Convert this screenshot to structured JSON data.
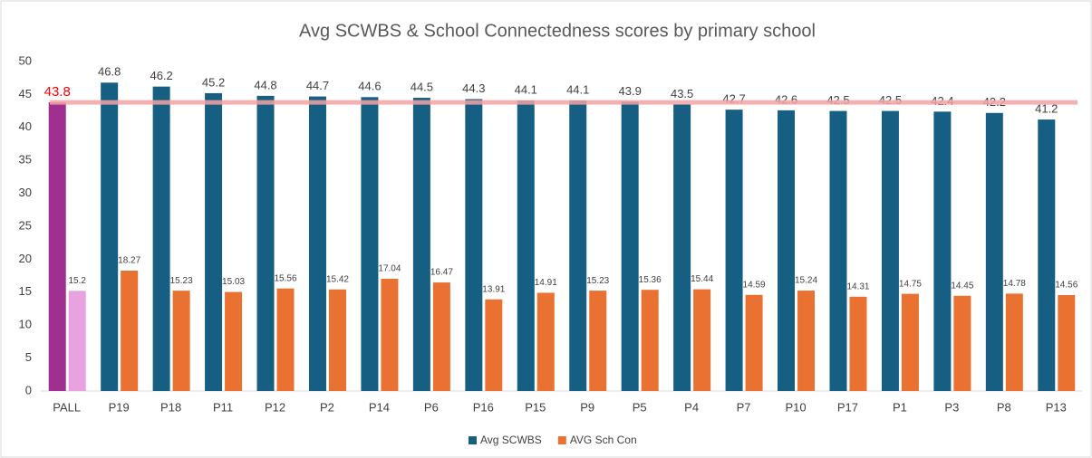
{
  "chart_data": {
    "type": "bar",
    "title": "Avg SCWBS & School Connectedness scores by primary school",
    "categories": [
      "PALL",
      "P19",
      "P18",
      "P11",
      "P12",
      "P2",
      "P14",
      "P6",
      "P16",
      "P15",
      "P9",
      "P5",
      "P4",
      "P7",
      "P10",
      "P17",
      "P1",
      "P3",
      "P8",
      "P13"
    ],
    "series": [
      {
        "name": "Avg SCWBS",
        "color": "#175e83",
        "colors": [
          "#a0308f",
          "#175e83",
          "#175e83",
          "#175e83",
          "#175e83",
          "#175e83",
          "#175e83",
          "#175e83",
          "#175e83",
          "#175e83",
          "#175e83",
          "#175e83",
          "#175e83",
          "#175e83",
          "#175e83",
          "#175e83",
          "#175e83",
          "#175e83",
          "#175e83",
          "#175e83"
        ],
        "label_colors": [
          "#ff0000",
          "#404040",
          "#404040",
          "#404040",
          "#404040",
          "#404040",
          "#404040",
          "#404040",
          "#404040",
          "#404040",
          "#404040",
          "#404040",
          "#404040",
          "#404040",
          "#404040",
          "#404040",
          "#404040",
          "#404040",
          "#404040",
          "#404040"
        ],
        "values": [
          43.8,
          46.8,
          46.2,
          45.2,
          44.8,
          44.7,
          44.6,
          44.5,
          44.3,
          44.1,
          44.1,
          43.9,
          43.5,
          42.7,
          42.6,
          42.5,
          42.5,
          42.4,
          42.2,
          41.2
        ]
      },
      {
        "name": "AVG Sch Con",
        "color": "#e97132",
        "colors": [
          "#e8a2e0",
          "#e97132",
          "#e97132",
          "#e97132",
          "#e97132",
          "#e97132",
          "#e97132",
          "#e97132",
          "#e97132",
          "#e97132",
          "#e97132",
          "#e97132",
          "#e97132",
          "#e97132",
          "#e97132",
          "#e97132",
          "#e97132",
          "#e97132",
          "#e97132",
          "#e97132"
        ],
        "label_colors": [
          "#404040",
          "#404040",
          "#404040",
          "#404040",
          "#404040",
          "#404040",
          "#404040",
          "#404040",
          "#404040",
          "#404040",
          "#404040",
          "#404040",
          "#404040",
          "#404040",
          "#404040",
          "#404040",
          "#404040",
          "#404040",
          "#404040",
          "#404040"
        ],
        "values": [
          15.2,
          18.27,
          15.23,
          15.03,
          15.56,
          15.42,
          17.04,
          16.47,
          13.91,
          14.91,
          15.23,
          15.36,
          15.44,
          14.59,
          15.24,
          14.31,
          14.75,
          14.45,
          14.78,
          14.56
        ]
      }
    ],
    "reference_line": {
      "value": 43.8,
      "color": "#f4a3a3"
    },
    "ylim": [
      0,
      50
    ],
    "yticks": [
      0,
      5,
      10,
      15,
      20,
      25,
      30,
      35,
      40,
      45,
      50
    ],
    "grid": false,
    "legend": "bottom"
  }
}
